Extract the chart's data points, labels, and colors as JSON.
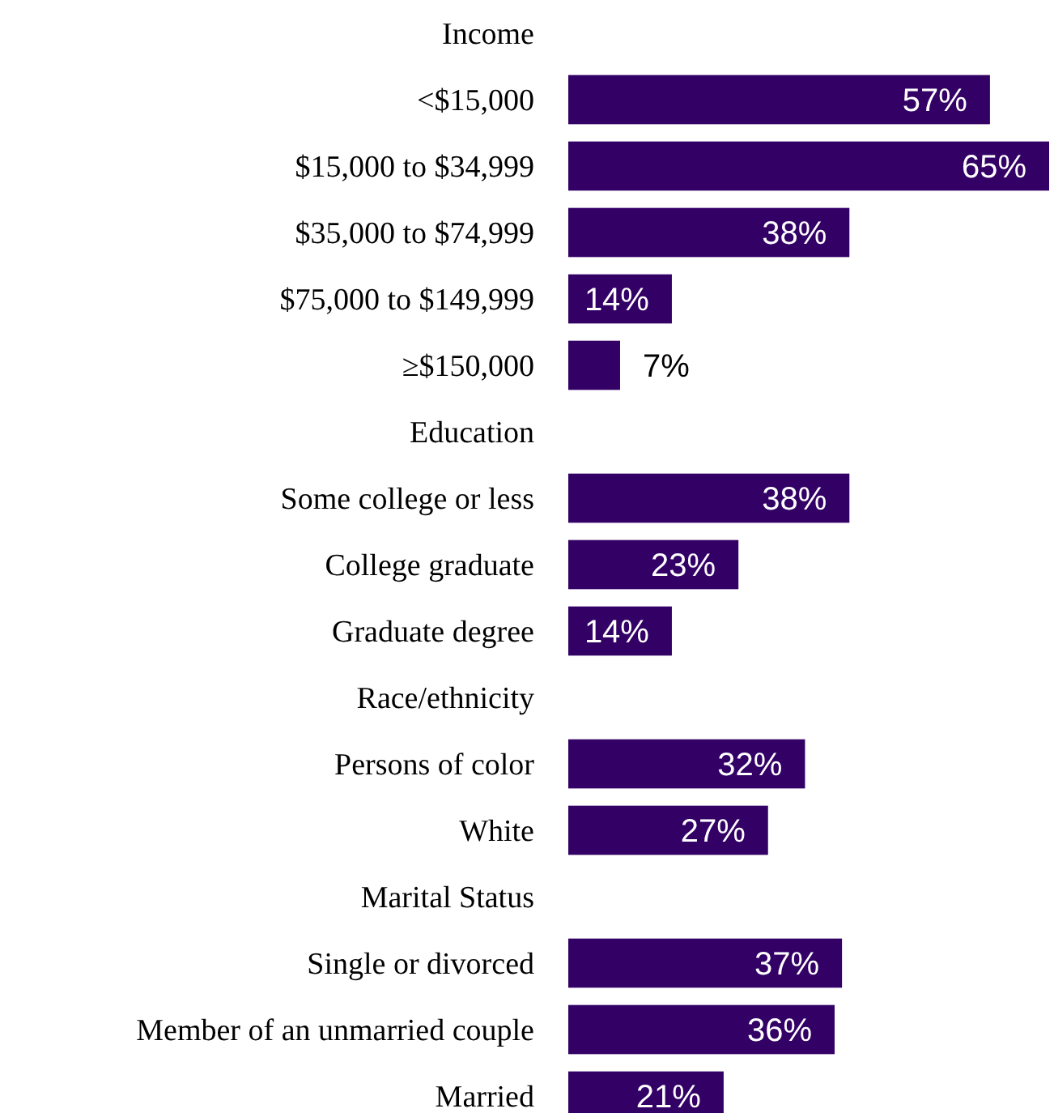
{
  "chart_data": {
    "type": "bar",
    "orientation": "horizontal",
    "categories": [
      "Income",
      "<$15,000",
      "$15,000 to $34,999",
      "$35,000 to $74,999",
      "$75,000 to $149,999",
      "≥$150,000",
      "Education",
      "Some college or less",
      "College graduate",
      "Graduate degree",
      "Race/ethnicity",
      "Persons of color",
      "White",
      "Marital Status",
      "Single or divorced",
      "Member of an unmarried couple",
      "Married"
    ],
    "values": [
      null,
      57,
      65,
      38,
      14,
      7,
      null,
      38,
      23,
      14,
      null,
      32,
      27,
      null,
      37,
      36,
      21
    ],
    "color": "#330066",
    "value_labels": [
      null,
      "57%",
      "65%",
      "38%",
      "14%",
      "7%",
      null,
      "38%",
      "23%",
      "14%",
      null,
      "32%",
      "27%",
      null,
      "37%",
      "36%",
      "21%"
    ]
  }
}
